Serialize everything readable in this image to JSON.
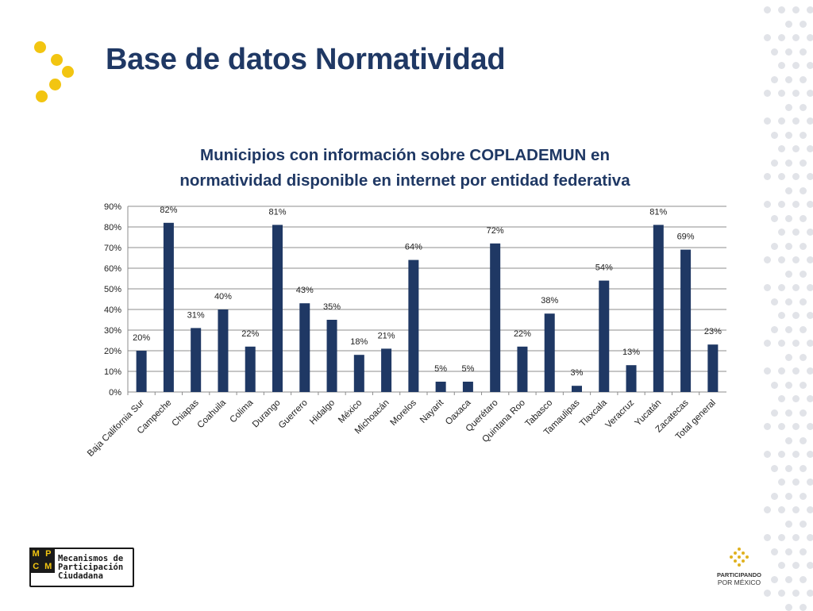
{
  "slide": {
    "title": "Base de datos Normatividad"
  },
  "chart_data": {
    "type": "bar",
    "title": "Municipios con información sobre COPLADEMUN en normatividad disponible en internet por entidad federativa",
    "title_lines": [
      "Municipios con información sobre COPLADEMUN en",
      "normatividad disponible en internet por entidad federativa"
    ],
    "categories": [
      "Baja California Sur",
      "Campeche",
      "Chiapas",
      "Coahuila",
      "Colima",
      "Durango",
      "Guerrero",
      "Hidalgo",
      "México",
      "Michoacán",
      "Morelos",
      "Nayarit",
      "Oaxaca",
      "Querétaro",
      "Quintana Roo",
      "Tabasco",
      "Tamaulipas",
      "Tlaxcala",
      "Veracruz",
      "Yucatán",
      "Zacatecas",
      "Total general"
    ],
    "values": [
      20,
      82,
      31,
      40,
      22,
      81,
      43,
      35,
      18,
      21,
      64,
      5,
      5,
      72,
      22,
      38,
      3,
      54,
      13,
      81,
      69,
      23
    ],
    "data_labels": [
      "20%",
      "82%",
      "31%",
      "40%",
      "22%",
      "81%",
      "43%",
      "35%",
      "18%",
      "21%",
      "64%",
      "5%",
      "5%",
      "72%",
      "22%",
      "38%",
      "3%",
      "54%",
      "13%",
      "81%",
      "69%",
      "23%"
    ],
    "yticks": [
      "0%",
      "10%",
      "20%",
      "30%",
      "40%",
      "50%",
      "60%",
      "70%",
      "80%",
      "90%"
    ],
    "ylim": [
      0,
      90
    ],
    "bar_color": "#1f3864",
    "grid": true,
    "legend": "none"
  },
  "logos": {
    "mpcm": {
      "letters": [
        "M",
        "P",
        "C",
        "M"
      ],
      "text": "Mecanismos de\nParticipación\nCiudadana"
    },
    "participando": {
      "line1": "PARTICIPANDO",
      "line2": "POR MÉXICO"
    }
  },
  "colors": {
    "title": "#1f3864",
    "accent": "#f2c511",
    "dots": "#e1e3e8"
  }
}
